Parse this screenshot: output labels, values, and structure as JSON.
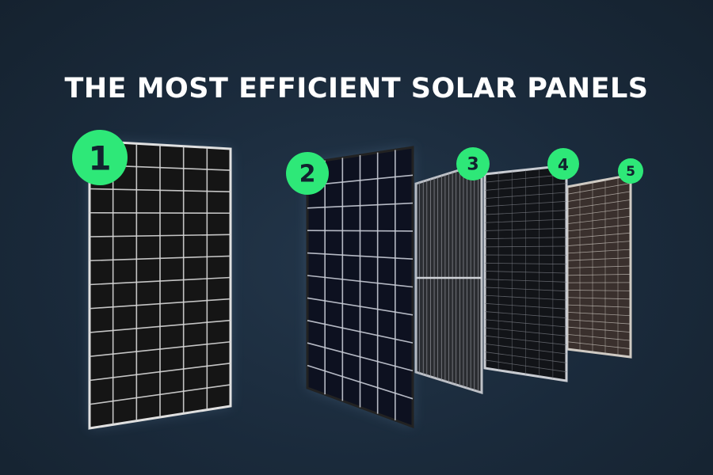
{
  "title": "THE MOST EFFICIENT SOLAR PANELS",
  "colors": {
    "background": "#1a2a3b",
    "badge": "#2ee878",
    "badge_text": "#12222f",
    "title": "#ffffff"
  },
  "panels": [
    {
      "rank": "1",
      "cell_color": "#151515",
      "line_color": "#d8d8d8"
    },
    {
      "rank": "2",
      "cell_color": "#0d1120",
      "line_color": "#c8ccd6"
    },
    {
      "rank": "3",
      "cell_color": "#2a2c30",
      "line_color": "#8e9198"
    },
    {
      "rank": "4",
      "cell_color": "#121418",
      "line_color": "#7d8088"
    },
    {
      "rank": "5",
      "cell_color": "#3a302d",
      "line_color": "#d0cbc4"
    }
  ]
}
